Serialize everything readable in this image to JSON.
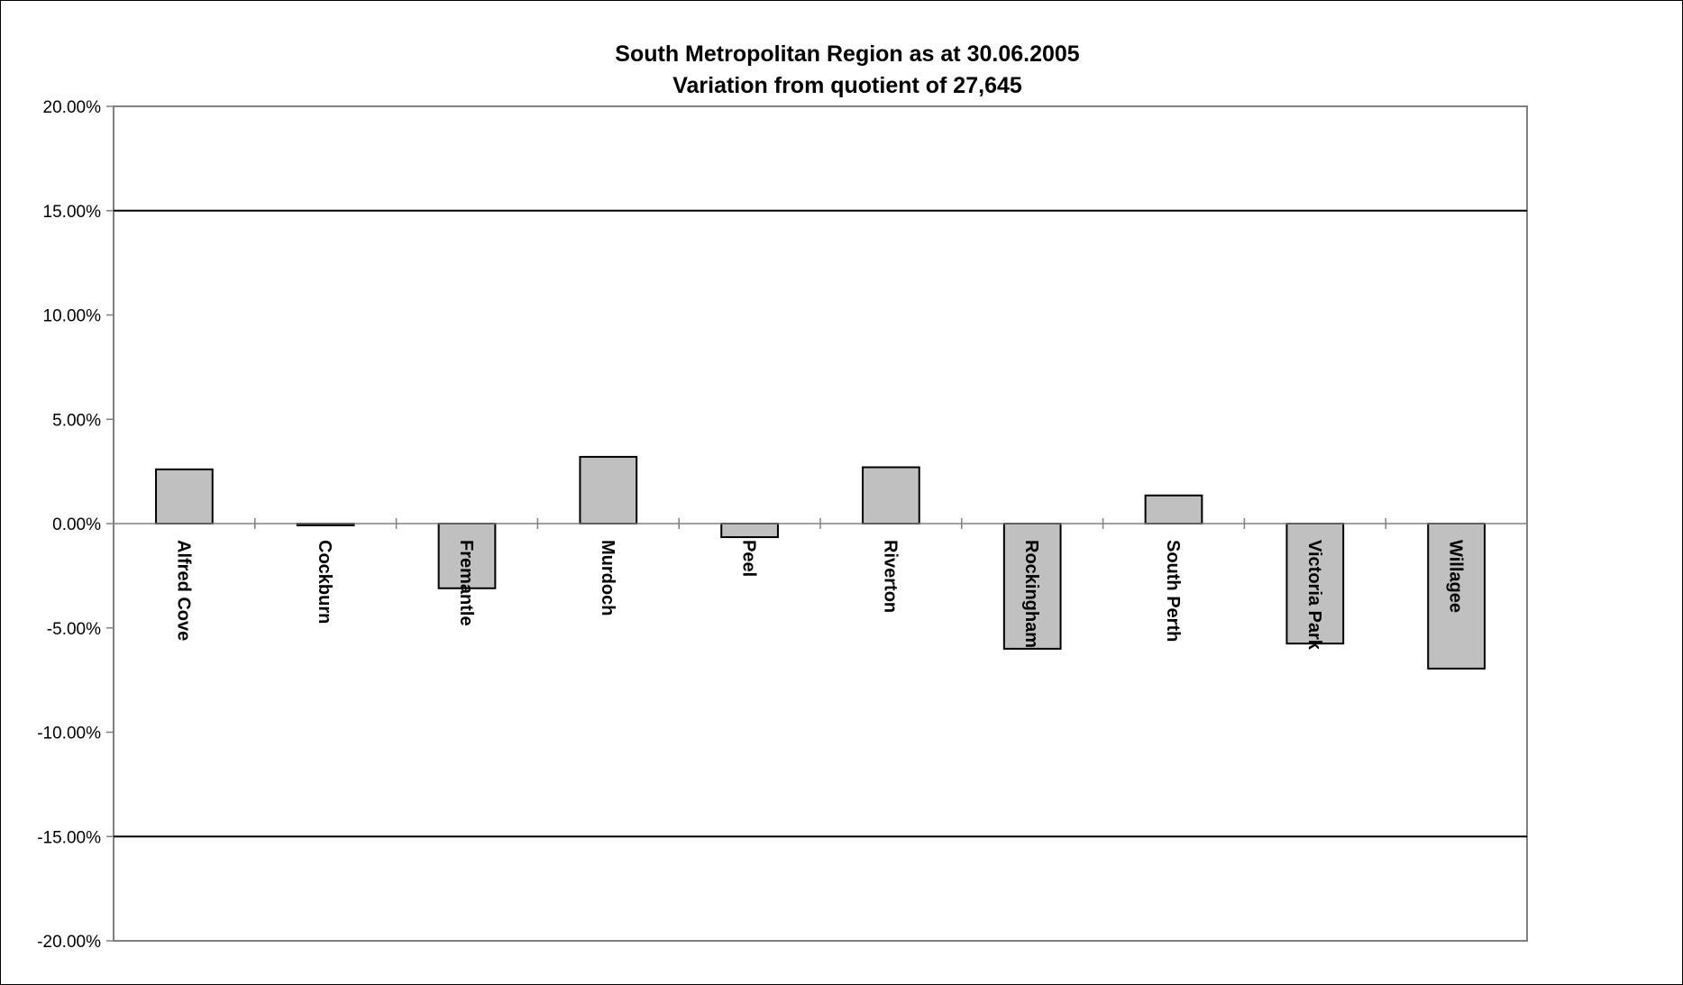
{
  "chart_data": {
    "type": "bar",
    "title": [
      "South Metropolitan Region as at 30.06.2005",
      "Variation from quotient of 27,645"
    ],
    "xlabel": "",
    "ylabel": "",
    "categories": [
      "Alfred Cove",
      "Cockburn",
      "Fremantle",
      "Murdoch",
      "Peel",
      "Riverton",
      "Rockingham",
      "South Perth",
      "Victoria Park",
      "Willagee"
    ],
    "series": [
      {
        "values": [
          2.6,
          -0.05,
          -3.1,
          3.2,
          -0.65,
          2.7,
          -6.0,
          1.35,
          -5.75,
          -6.95
        ]
      }
    ],
    "ylim": [
      -20,
      20
    ],
    "yticks": [
      20,
      15,
      10,
      5,
      0,
      -5,
      -10,
      -15,
      -20
    ],
    "ytick_labels": [
      "20.00%",
      "15.00%",
      "10.00%",
      "5.00%",
      "0.00%",
      "-5.00%",
      "-10.00%",
      "-15.00%",
      "-20.00%"
    ],
    "reference_lines": [
      15,
      -15
    ],
    "grid": false,
    "legend": "none",
    "colors": {
      "bar_fill": "#c0c0c0",
      "bar_stroke": "#000000",
      "plot_border": "#808080",
      "line": "#000000"
    }
  }
}
